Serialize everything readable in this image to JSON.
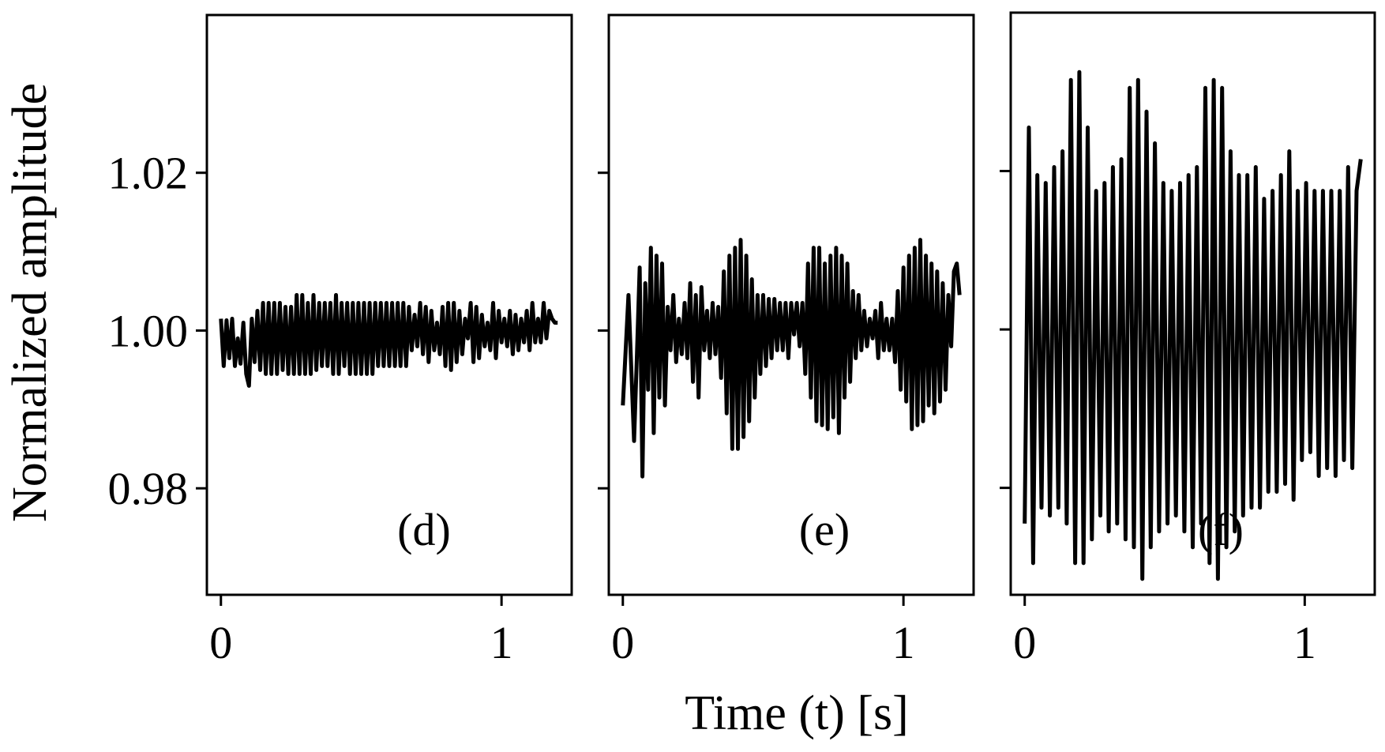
{
  "chart_data": [
    {
      "type": "line",
      "panel_label": "(d)",
      "xlabel": "",
      "ylabel": "Normalized amplitude",
      "xlim": [
        -0.05,
        1.25
      ],
      "ylim": [
        0.9665,
        1.04
      ],
      "xticks": [
        {
          "v": 0,
          "label": "0"
        },
        {
          "v": 1,
          "label": "1"
        }
      ],
      "yticks": [
        {
          "v": 0.98,
          "label": "0.98"
        },
        {
          "v": 1.0,
          "label": "1.00"
        },
        {
          "v": 1.02,
          "label": "1.02"
        }
      ],
      "y_tick_labels_shown": true,
      "series": [
        {
          "x": [
            0.0,
            0.01,
            0.02,
            0.03,
            0.04,
            0.05,
            0.06,
            0.07,
            0.08,
            0.09,
            0.1,
            0.11,
            0.12,
            0.13,
            0.14,
            0.15,
            0.16,
            0.17,
            0.18,
            0.19,
            0.2,
            0.21,
            0.22,
            0.23,
            0.24,
            0.25,
            0.26,
            0.27,
            0.28,
            0.29,
            0.3,
            0.31,
            0.32,
            0.33,
            0.34,
            0.35,
            0.36,
            0.37,
            0.38,
            0.39,
            0.4,
            0.41,
            0.42,
            0.43,
            0.44,
            0.45,
            0.46,
            0.47,
            0.48,
            0.49,
            0.5,
            0.51,
            0.52,
            0.53,
            0.54,
            0.55,
            0.56,
            0.57,
            0.58,
            0.59,
            0.6,
            0.61,
            0.62,
            0.63,
            0.64,
            0.65,
            0.66,
            0.67,
            0.68,
            0.69,
            0.7,
            0.71,
            0.72,
            0.73,
            0.74,
            0.75,
            0.76,
            0.77,
            0.78,
            0.79,
            0.8,
            0.81,
            0.82,
            0.83,
            0.84,
            0.85,
            0.86,
            0.87,
            0.88,
            0.89,
            0.9,
            0.91,
            0.92,
            0.93,
            0.94,
            0.95,
            0.96,
            0.97,
            0.98,
            0.99,
            1.0,
            1.01,
            1.02,
            1.03,
            1.04,
            1.05,
            1.06,
            1.07,
            1.08,
            1.09,
            1.1,
            1.11,
            1.12,
            1.13,
            1.14,
            1.15,
            1.16,
            1.17,
            1.18,
            1.19,
            1.2
          ],
          "y": [
            1.0015,
            0.9955,
            1.0013,
            0.9965,
            1.0015,
            0.9955,
            0.999,
            0.9958,
            1.001,
            0.9945,
            0.993,
            1.0015,
            0.996,
            1.0025,
            0.995,
            1.0035,
            0.9945,
            1.0035,
            0.9945,
            1.0035,
            0.9945,
            1.0035,
            0.995,
            1.003,
            0.9945,
            1.003,
            0.9945,
            1.0045,
            0.9945,
            1.0045,
            0.9945,
            1.0035,
            0.9945,
            1.0045,
            0.995,
            1.0035,
            0.9955,
            1.0035,
            0.9955,
            1.0035,
            0.9945,
            1.0045,
            0.9945,
            1.0035,
            0.9955,
            1.0035,
            0.9945,
            1.0035,
            0.9945,
            1.0035,
            0.9945,
            1.0035,
            0.9945,
            1.0035,
            0.9945,
            1.0035,
            0.9955,
            1.0035,
            0.9955,
            1.0035,
            0.9955,
            1.0035,
            0.9955,
            1.0035,
            0.9955,
            1.0035,
            0.9955,
            1.003,
            0.9975,
            1.002,
            0.998,
            1.0035,
            0.997,
            1.003,
            0.996,
            1.0025,
            0.9975,
            1.001,
            0.997,
            1.003,
            0.9955,
            1.0035,
            0.995,
            1.0035,
            0.996,
            1.0025,
            0.997,
            1.0015,
            0.999,
            1.0035,
            0.996,
            1.003,
            0.9965,
            1.002,
            0.998,
            1.001,
            0.9975,
            1.0035,
            0.9965,
            1.0025,
            0.9985,
            1.0015,
            0.998,
            1.0025,
            0.997,
            1.002,
            0.9975,
            1.0015,
            0.9985,
            1.0025,
            0.9975,
            1.0035,
            0.9985,
            1.0015,
            0.9985,
            1.0035,
            0.999,
            1.0025,
            1.0015,
            1.001,
            1.001
          ]
        }
      ]
    },
    {
      "type": "line",
      "panel_label": "(e)",
      "xlabel": "Time (t) [s]",
      "ylabel": "",
      "xlim": [
        -0.05,
        1.25
      ],
      "ylim": [
        0.9665,
        1.04
      ],
      "xticks": [
        {
          "v": 0,
          "label": "0"
        },
        {
          "v": 1,
          "label": "1"
        }
      ],
      "yticks": [
        {
          "v": 0.98,
          "label": ""
        },
        {
          "v": 1.0,
          "label": ""
        },
        {
          "v": 1.02,
          "label": ""
        }
      ],
      "y_tick_labels_shown": false,
      "series": [
        {
          "x": [
            0.0,
            0.02,
            0.04,
            0.05,
            0.06,
            0.07,
            0.08,
            0.09,
            0.1,
            0.11,
            0.12,
            0.13,
            0.14,
            0.15,
            0.16,
            0.17,
            0.18,
            0.19,
            0.2,
            0.21,
            0.22,
            0.23,
            0.24,
            0.25,
            0.26,
            0.27,
            0.28,
            0.29,
            0.3,
            0.31,
            0.32,
            0.33,
            0.34,
            0.35,
            0.36,
            0.37,
            0.38,
            0.39,
            0.4,
            0.41,
            0.42,
            0.43,
            0.44,
            0.45,
            0.46,
            0.47,
            0.48,
            0.49,
            0.5,
            0.51,
            0.52,
            0.53,
            0.54,
            0.55,
            0.56,
            0.57,
            0.58,
            0.59,
            0.6,
            0.61,
            0.62,
            0.63,
            0.64,
            0.65,
            0.66,
            0.67,
            0.68,
            0.69,
            0.7,
            0.71,
            0.72,
            0.73,
            0.74,
            0.75,
            0.76,
            0.77,
            0.78,
            0.79,
            0.8,
            0.81,
            0.82,
            0.83,
            0.84,
            0.85,
            0.86,
            0.87,
            0.88,
            0.89,
            0.9,
            0.91,
            0.92,
            0.93,
            0.94,
            0.95,
            0.96,
            0.97,
            0.98,
            0.99,
            1.0,
            1.01,
            1.02,
            1.03,
            1.04,
            1.05,
            1.06,
            1.07,
            1.08,
            1.09,
            1.1,
            1.11,
            1.12,
            1.13,
            1.14,
            1.15,
            1.16,
            1.17,
            1.18,
            1.19,
            1.2
          ],
          "y": [
            0.9905,
            1.0045,
            0.986,
            0.9965,
            1.008,
            0.9815,
            1.006,
            0.9925,
            1.0105,
            0.987,
            1.0095,
            0.9915,
            1.0085,
            0.9905,
            1.003,
            0.9975,
            1.0045,
            0.996,
            1.0015,
            0.997,
            1.0035,
            0.9965,
            1.006,
            0.9935,
            1.0045,
            0.9915,
            1.0055,
            0.9975,
            1.0025,
            0.9965,
            1.0035,
            0.997,
            1.003,
            0.994,
            1.0075,
            0.9895,
            1.0095,
            0.985,
            1.0105,
            0.985,
            1.0115,
            0.9865,
            1.0095,
            0.9885,
            1.0065,
            0.9915,
            1.0045,
            0.9945,
            1.0045,
            0.9955,
            1.004,
            0.9965,
            1.004,
            0.9975,
            1.0035,
            0.9975,
            1.0035,
            0.9965,
            1.0035,
            0.9995,
            1.0035,
            0.998,
            1.0035,
            0.9945,
            1.0085,
            0.9915,
            1.0105,
            0.9885,
            1.0105,
            0.988,
            1.0085,
            0.9875,
            1.0095,
            0.989,
            1.0105,
            0.987,
            1.0095,
            0.9915,
            1.0085,
            0.9935,
            1.005,
            0.9965,
            1.0045,
            0.9975,
            1.0025,
            0.998,
            1.0015,
            0.999,
            1.0025,
            0.9965,
            1.0035,
            0.9975,
            1.0015,
            0.9975,
            1.0015,
            0.996,
            1.005,
            0.9925,
            1.008,
            0.991,
            1.0095,
            0.9875,
            1.0105,
            0.988,
            1.0115,
            0.9885,
            1.0095,
            0.9905,
            1.0085,
            0.9895,
            1.0075,
            0.991,
            1.006,
            0.9925,
            1.0045,
            0.998,
            1.0075,
            1.0085,
            1.0045
          ]
        }
      ]
    },
    {
      "type": "line",
      "panel_label": "(f)",
      "xlabel": "",
      "ylabel": "",
      "xlim": [
        -0.05,
        1.25
      ],
      "ylim": [
        0.9665,
        1.04
      ],
      "xticks": [
        {
          "v": 0,
          "label": "0"
        },
        {
          "v": 1,
          "label": "1"
        }
      ],
      "yticks": [
        {
          "v": 0.98,
          "label": ""
        },
        {
          "v": 1.0,
          "label": ""
        },
        {
          "v": 1.02,
          "label": ""
        }
      ],
      "y_tick_labels_shown": false,
      "series": [
        {
          "x": [
            0.0,
            0.015,
            0.03,
            0.045,
            0.06,
            0.075,
            0.09,
            0.105,
            0.12,
            0.135,
            0.15,
            0.165,
            0.18,
            0.195,
            0.21,
            0.225,
            0.24,
            0.255,
            0.27,
            0.285,
            0.3,
            0.315,
            0.33,
            0.345,
            0.36,
            0.375,
            0.39,
            0.405,
            0.42,
            0.435,
            0.45,
            0.465,
            0.48,
            0.495,
            0.51,
            0.525,
            0.54,
            0.555,
            0.57,
            0.585,
            0.6,
            0.615,
            0.63,
            0.645,
            0.66,
            0.675,
            0.69,
            0.705,
            0.72,
            0.735,
            0.75,
            0.765,
            0.78,
            0.795,
            0.81,
            0.825,
            0.84,
            0.855,
            0.87,
            0.885,
            0.9,
            0.915,
            0.93,
            0.945,
            0.96,
            0.975,
            0.99,
            1.005,
            1.02,
            1.035,
            1.05,
            1.065,
            1.08,
            1.095,
            1.11,
            1.125,
            1.14,
            1.155,
            1.17,
            1.185,
            1.2
          ],
          "y": [
            0.9755,
            1.0255,
            0.9705,
            1.0195,
            0.9775,
            1.0185,
            0.9765,
            1.0205,
            0.9775,
            1.0225,
            0.9755,
            1.0315,
            0.9705,
            1.0325,
            0.9705,
            1.0255,
            0.9735,
            1.0175,
            0.9765,
            1.0185,
            0.9745,
            1.0205,
            0.9755,
            1.0215,
            0.9735,
            1.0305,
            0.9725,
            1.0315,
            0.9685,
            1.0275,
            0.9725,
            1.0235,
            0.9745,
            1.0185,
            0.9755,
            1.0175,
            0.9765,
            1.0185,
            0.9745,
            1.0195,
            0.9725,
            1.0205,
            0.9755,
            1.0305,
            0.9705,
            1.0315,
            0.9685,
            1.0305,
            0.9725,
            1.0225,
            0.9745,
            1.0195,
            0.9765,
            1.0195,
            0.9775,
            1.0205,
            0.9775,
            1.0165,
            0.9795,
            1.0175,
            0.9795,
            1.0195,
            0.9805,
            1.0225,
            0.9785,
            1.0175,
            0.9835,
            1.0185,
            0.9845,
            1.0175,
            0.9815,
            1.0175,
            0.9825,
            1.0175,
            0.9815,
            1.0175,
            0.9835,
            1.0205,
            0.9825,
            1.0175,
            1.0215
          ]
        }
      ]
    }
  ]
}
